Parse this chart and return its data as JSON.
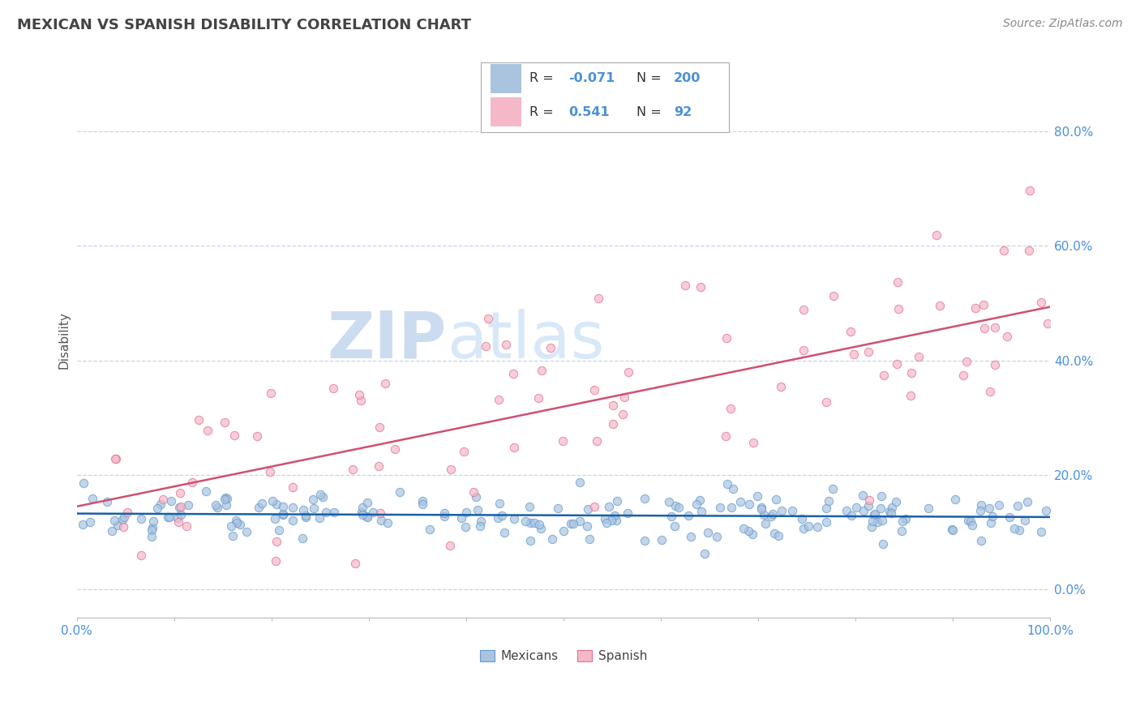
{
  "title": "MEXICAN VS SPANISH DISABILITY CORRELATION CHART",
  "source": "Source: ZipAtlas.com",
  "ylabel": "Disability",
  "xlim": [
    0.0,
    1.0
  ],
  "ylim": [
    -0.05,
    0.92
  ],
  "x_ticks": [
    0.0,
    1.0
  ],
  "x_tick_labels": [
    "0.0%",
    "100.0%"
  ],
  "y_ticks": [
    0.0,
    0.2,
    0.4,
    0.6,
    0.8
  ],
  "y_tick_labels": [
    "0.0%",
    "20.0%",
    "40.0%",
    "60.0%",
    "80.0%"
  ],
  "mexicans_color": "#aac4e0",
  "mexicans_edge_color": "#6699cc",
  "spanish_color": "#f4b8c8",
  "spanish_edge_color": "#e07090",
  "mexicans_line_color": "#1a5fa8",
  "spanish_line_color": "#d05070",
  "R_mexicans": -0.071,
  "N_mexicans": 200,
  "R_spanish": 0.541,
  "N_spanish": 92,
  "background_color": "#ffffff",
  "grid_color": "#c8d4e8",
  "title_color": "#444444",
  "source_color": "#888888",
  "ytick_color": "#4a90d9",
  "xtick_color": "#4a90d9",
  "ylabel_color": "#555555",
  "watermark_zip": "ZIP",
  "watermark_atlas": "atlas",
  "watermark_color": "#ccdcf0",
  "legend_r_color": "#333333",
  "legend_val_color": "#4a90d9",
  "seed": 99
}
